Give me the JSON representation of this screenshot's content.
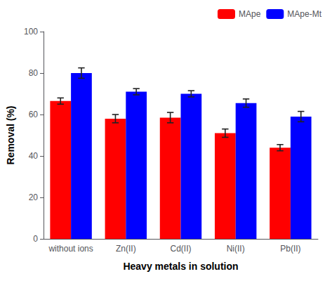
{
  "chart_data": {
    "type": "bar",
    "xlabel": "Heavy metals in solution",
    "ylabel": "Removal (%)",
    "categories": [
      "without ions",
      "Zn(II)",
      "Cd(II)",
      "Ni(II)",
      "Pb(II)"
    ],
    "series": [
      {
        "name": "MApe",
        "color": "#ff0000",
        "values": [
          66.5,
          58.0,
          58.5,
          51.0,
          44.0
        ],
        "errors": [
          1.5,
          2.0,
          2.5,
          2.0,
          1.5
        ]
      },
      {
        "name": "MApe-Mt",
        "color": "#0000ff",
        "values": [
          80.0,
          71.0,
          70.0,
          65.5,
          59.0
        ],
        "errors": [
          2.5,
          1.5,
          1.5,
          2.0,
          2.5
        ]
      }
    ],
    "ylim": [
      0,
      100
    ],
    "yticks": [
      0,
      20,
      40,
      60,
      80,
      100
    ],
    "grid": false,
    "legend": "upper right"
  }
}
